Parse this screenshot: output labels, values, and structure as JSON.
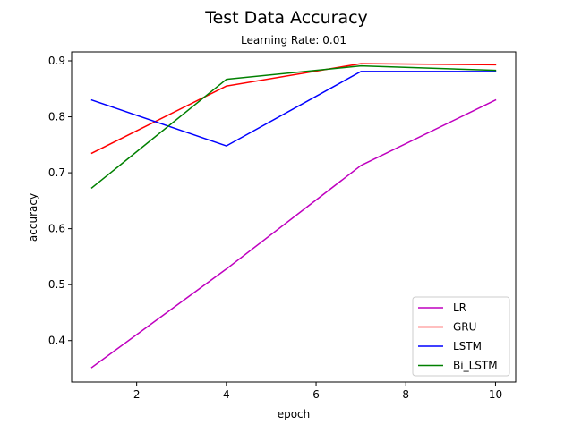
{
  "chart_data": {
    "type": "line",
    "title": "Test Data Accuracy",
    "subtitle": "Learning Rate: 0.01",
    "xlabel": "epoch",
    "ylabel": "accuracy",
    "xlim": [
      0.55,
      10.45
    ],
    "ylim": [
      0.326,
      0.916
    ],
    "xticks": [
      2,
      4,
      6,
      8,
      10
    ],
    "yticks": [
      0.4,
      0.5,
      0.6,
      0.7,
      0.8,
      0.9
    ],
    "xtick_labels": [
      "2",
      "4",
      "6",
      "8",
      "10"
    ],
    "ytick_labels": [
      "0.4",
      "0.5",
      "0.6",
      "0.7",
      "0.8",
      "0.9"
    ],
    "grid": false,
    "legend_position": "lower-right",
    "x": [
      1,
      4,
      7,
      10
    ],
    "series": [
      {
        "name": "LR",
        "color": "#bf00bf",
        "values": [
          0.352,
          0.528,
          0.713,
          0.83
        ]
      },
      {
        "name": "GRU",
        "color": "#ff0000",
        "values": [
          0.735,
          0.855,
          0.895,
          0.893
        ]
      },
      {
        "name": "LSTM",
        "color": "#0000ff",
        "values": [
          0.83,
          0.748,
          0.881,
          0.881
        ]
      },
      {
        "name": "Bi_LSTM",
        "color": "#008000",
        "values": [
          0.673,
          0.867,
          0.891,
          0.883
        ]
      }
    ]
  }
}
